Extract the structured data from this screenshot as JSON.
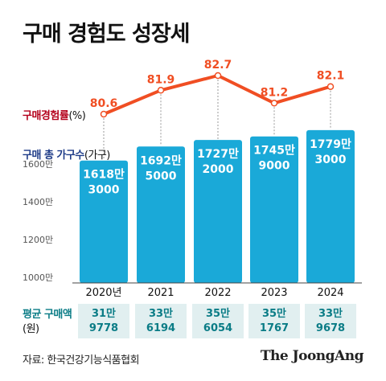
{
  "title": "구매 경험도 성장세",
  "chart_data": {
    "type": "bar",
    "categories": [
      "2020년",
      "2021",
      "2022",
      "2023",
      "2024"
    ],
    "series": [
      {
        "name": "구매 총 가구수",
        "values": [
          16183000,
          16925000,
          17272000,
          17459000,
          17793000
        ],
        "labels": [
          [
            "1618만",
            "3000"
          ],
          [
            "1692만",
            "5000"
          ],
          [
            "1727만",
            "2000"
          ],
          [
            "1745만",
            "9000"
          ],
          [
            "1779만",
            "3000"
          ]
        ],
        "unit": "가구",
        "color": "#1aa9d8"
      },
      {
        "name": "구매경험률",
        "values": [
          80.6,
          81.9,
          82.7,
          81.2,
          82.1
        ],
        "labels": [
          "80.6",
          "81.9",
          "82.7",
          "81.2",
          "82.1"
        ],
        "unit": "%",
        "color": "#f04e23"
      }
    ],
    "y_ticks": [
      "1600만",
      "1400만",
      "1200만",
      "1000만"
    ],
    "average_purchase": {
      "name": "평균 구매액",
      "unit": "원",
      "values": [
        319778,
        336194,
        356054,
        351767,
        339678
      ],
      "labels": [
        [
          "31만",
          "9778"
        ],
        [
          "33만",
          "6194"
        ],
        [
          "35만",
          "6054"
        ],
        [
          "35만",
          "1767"
        ],
        [
          "33만",
          "9678"
        ]
      ]
    }
  },
  "legend": {
    "rate_name": "구매경험률",
    "rate_unit": "(%)",
    "households_name": "구매 총 가구수",
    "households_unit": "(가구)",
    "avg_name": "평균 구매액",
    "avg_unit": "(원)"
  },
  "source": "자료: 한국건강기능식품협회",
  "logo": "The JoongAng"
}
